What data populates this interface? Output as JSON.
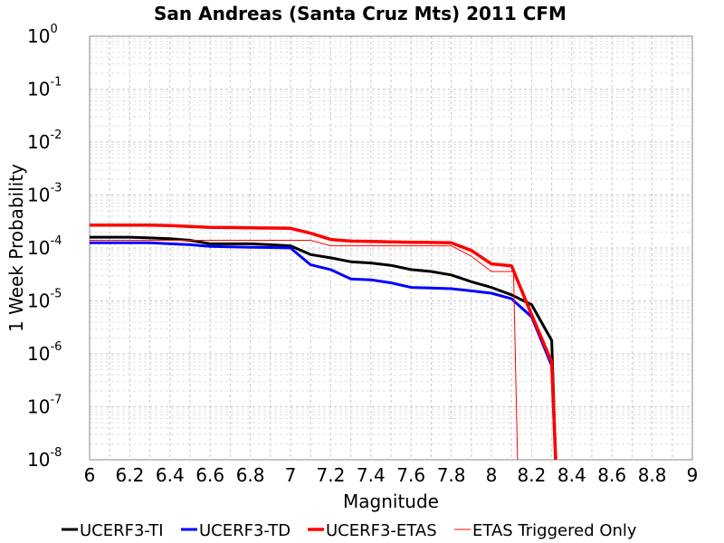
{
  "chart_data": {
    "type": "line",
    "title": "San Andreas (Santa Cruz Mts) 2011 CFM",
    "xlabel": "Magnitude",
    "ylabel": "1 Week Probability",
    "xlim": [
      6,
      9
    ],
    "ylim": [
      1e-08,
      1
    ],
    "y_scale": "log",
    "grid": true,
    "legend_position": "bottom",
    "x_ticks": [
      "6",
      "6.2",
      "6.4",
      "6.6",
      "6.8",
      "7",
      "7.2",
      "7.4",
      "7.6",
      "7.8",
      "8",
      "8.2",
      "8.4",
      "8.6",
      "8.8",
      "9"
    ],
    "y_ticks": [
      {
        "base": "10",
        "exp": "0"
      },
      {
        "base": "10",
        "exp": "-1"
      },
      {
        "base": "10",
        "exp": "-2"
      },
      {
        "base": "10",
        "exp": "-3"
      },
      {
        "base": "10",
        "exp": "-4"
      },
      {
        "base": "10",
        "exp": "-5"
      },
      {
        "base": "10",
        "exp": "-6"
      },
      {
        "base": "10",
        "exp": "-7"
      },
      {
        "base": "10",
        "exp": "-8"
      }
    ],
    "series": [
      {
        "name": "UCERF3-TI",
        "color": "#000000",
        "width": 3,
        "x": [
          6.0,
          6.1,
          6.2,
          6.3,
          6.4,
          6.5,
          6.6,
          6.7,
          6.8,
          6.9,
          7.0,
          7.1,
          7.2,
          7.3,
          7.4,
          7.5,
          7.6,
          7.7,
          7.8,
          7.9,
          8.0,
          8.1,
          8.2,
          8.3,
          8.32
        ],
        "y": [
          0.00016,
          0.00016,
          0.00016,
          0.000155,
          0.00015,
          0.00014,
          0.00012,
          0.00012,
          0.00012,
          0.000115,
          0.00011,
          7.5e-05,
          6.5e-05,
          5.5e-05,
          5.2e-05,
          4.7e-05,
          3.9e-05,
          3.6e-05,
          3.1e-05,
          2.3e-05,
          1.8e-05,
          1.3e-05,
          8.5e-06,
          1.8e-06,
          1e-08
        ]
      },
      {
        "name": "UCERF3-TD",
        "color": "#0000ff",
        "width": 3,
        "x": [
          6.0,
          6.1,
          6.2,
          6.3,
          6.4,
          6.5,
          6.6,
          6.7,
          6.8,
          6.9,
          7.0,
          7.1,
          7.2,
          7.3,
          7.4,
          7.5,
          7.6,
          7.7,
          7.8,
          7.9,
          8.0,
          8.1,
          8.2,
          8.3,
          8.32
        ],
        "y": [
          0.000125,
          0.000125,
          0.000125,
          0.000125,
          0.00012,
          0.000115,
          0.000107,
          0.000105,
          0.000103,
          0.000102,
          0.0001,
          4.8e-05,
          3.9e-05,
          2.6e-05,
          2.5e-05,
          2.2e-05,
          1.8e-05,
          1.75e-05,
          1.7e-05,
          1.55e-05,
          1.4e-05,
          1.1e-05,
          5e-06,
          6e-07,
          1e-08
        ]
      },
      {
        "name": "UCERF3-ETAS",
        "color": "#ff0000",
        "width": 3.5,
        "x": [
          6.0,
          6.1,
          6.2,
          6.3,
          6.4,
          6.5,
          6.6,
          6.7,
          6.8,
          6.9,
          7.0,
          7.1,
          7.2,
          7.3,
          7.4,
          7.5,
          7.6,
          7.7,
          7.8,
          7.9,
          8.0,
          8.1,
          8.2,
          8.3,
          8.32
        ],
        "y": [
          0.00027,
          0.00027,
          0.00027,
          0.00027,
          0.000265,
          0.000255,
          0.000245,
          0.000243,
          0.00024,
          0.000238,
          0.000235,
          0.00019,
          0.000145,
          0.000135,
          0.000133,
          0.00013,
          0.000128,
          0.000127,
          0.000125,
          9e-05,
          5e-05,
          4.6e-05,
          5.5e-06,
          7e-07,
          1e-08
        ]
      },
      {
        "name": "ETAS Triggered Only",
        "color": "#ff0000",
        "width": 1,
        "x": [
          6.0,
          6.1,
          6.2,
          6.3,
          6.4,
          6.5,
          6.6,
          6.7,
          6.8,
          6.9,
          7.0,
          7.1,
          7.2,
          7.3,
          7.4,
          7.5,
          7.6,
          7.7,
          7.8,
          7.9,
          8.0,
          8.1,
          8.11,
          8.13
        ],
        "y": [
          0.00014,
          0.00014,
          0.00014,
          0.00014,
          0.00014,
          0.00014,
          0.00014,
          0.00014,
          0.00014,
          0.00014,
          0.00014,
          0.00014,
          0.00011,
          0.00011,
          0.00011,
          0.00011,
          0.00011,
          0.00011,
          0.00011,
          7e-05,
          3.6e-05,
          3.6e-05,
          3.6e-05,
          1e-08
        ]
      }
    ]
  }
}
